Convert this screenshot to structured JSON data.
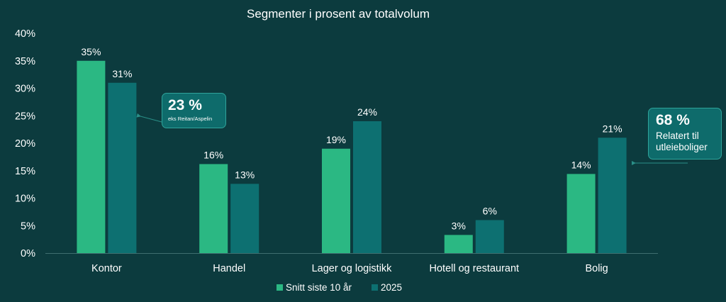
{
  "colors": {
    "background": "#0c3b3e",
    "series_snitt": "#2bb883",
    "series_2025": "#0d7071",
    "text": "#ffffff",
    "callout_bg": "#0e6b6b",
    "callout_border": "#2fa39a",
    "arrow": "#2a8f88"
  },
  "chart_data": {
    "type": "bar",
    "title": "Segmenter i prosent av totalvolum",
    "xlabel": "",
    "ylabel": "",
    "ylim": [
      0,
      40
    ],
    "yticks": [
      "0%",
      "5%",
      "10%",
      "15%",
      "20%",
      "25%",
      "30%",
      "35%",
      "40%"
    ],
    "grid": false,
    "legend_position": "bottom",
    "categories": [
      "Kontor",
      "Handel",
      "Lager og logistikk",
      "Hotell og restaurant",
      "Bolig"
    ],
    "series": [
      {
        "name": "Snitt siste 10 år",
        "values": [
          35,
          16.2,
          19,
          3.3,
          14.4
        ],
        "labels": [
          "35%",
          "16%",
          "19%",
          "3%",
          "14%"
        ]
      },
      {
        "name": "2025",
        "values": [
          31,
          12.6,
          24,
          6,
          21
        ],
        "labels": [
          "31%",
          "13%",
          "24%",
          "6%",
          "21%"
        ]
      }
    ]
  },
  "annotations": [
    {
      "value": "23 %",
      "text": "eks Reitan/Aspelin"
    },
    {
      "value": "68 %",
      "text": "Relatert til utleieboliger"
    }
  ]
}
